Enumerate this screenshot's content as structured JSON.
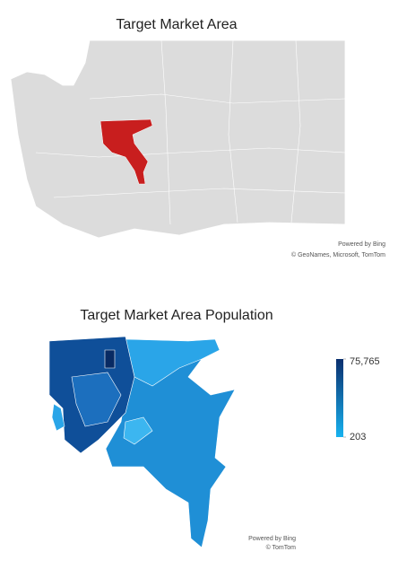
{
  "maps": [
    {
      "title": "Target Market Area",
      "attribution": [
        "Powered by Bing",
        "© GeoNames, Microsoft, TomTom"
      ]
    },
    {
      "title": "Target Market Area Population",
      "legend": {
        "max": {
          "value": 75765,
          "label": "75,765"
        },
        "min": 203,
        "color_max": "#0b2f6e",
        "color_min": "#17b2ef"
      },
      "attribution": [
        "Powered by Bing",
        "© TomTom"
      ]
    }
  ]
}
